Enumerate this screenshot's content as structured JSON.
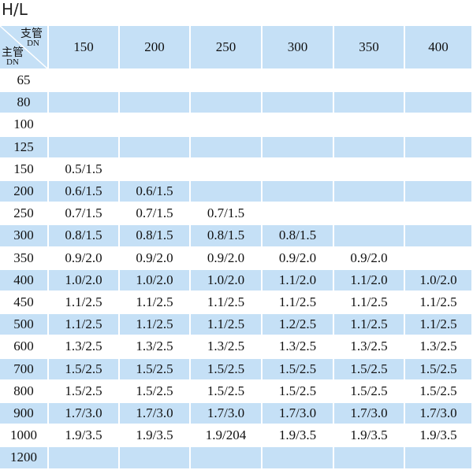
{
  "title": "H/L",
  "header": {
    "corner": {
      "branch": "支管",
      "branch_dn": "DN",
      "main": "主管",
      "main_dn": "DN"
    },
    "columns": [
      "150",
      "200",
      "250",
      "300",
      "350",
      "400"
    ]
  },
  "rows": [
    [
      "65"
    ],
    [
      "80"
    ],
    [
      "100"
    ],
    [
      "125"
    ],
    [
      "150",
      "0.5/1.5"
    ],
    [
      "200",
      "0.6/1.5",
      "0.6/1.5"
    ],
    [
      "250",
      "0.7/1.5",
      "0.7/1.5",
      "0.7/1.5"
    ],
    [
      "300",
      "0.8/1.5",
      "0.8/1.5",
      "0.8/1.5",
      "0.8/1.5"
    ],
    [
      "350",
      "0.9/2.0",
      "0.9/2.0",
      "0.9/2.0",
      "0.9/2.0",
      "0.9/2.0"
    ],
    [
      "400",
      "1.0/2.0",
      "1.0/2.0",
      "1.0/2.0",
      "1.1/2.0",
      "1.1/2.0",
      "1.0/2.0"
    ],
    [
      "450",
      "1.1/2.5",
      "1.1/2.5",
      "1.1/2.5",
      "1.1/2.5",
      "1.1/2.5",
      "1.1/2.5"
    ],
    [
      "500",
      "1.1/2.5",
      "1.1/2.5",
      "1.1/2.5",
      "1.2/2.5",
      "1.1/2.5",
      "1.1/2.5"
    ],
    [
      "600",
      "1.3/2.5",
      "1.3/2.5",
      "1.3/2.5",
      "1.3/2.5",
      "1.3/2.5",
      "1.3/2.5"
    ],
    [
      "700",
      "1.5/2.5",
      "1.5/2.5",
      "1.5/2.5",
      "1.5/2.5",
      "1.5/2.5",
      "1.5/2.5"
    ],
    [
      "800",
      "1.5/2.5",
      "1.5/2.5",
      "1.5/2.5",
      "1.5/2.5",
      "1.5/2.5",
      "1.5/2.5"
    ],
    [
      "900",
      "1.7/3.0",
      "1.7/3.0",
      "1.7/3.0",
      "1.7/3.0",
      "1.7/3.0",
      "1.7/3.0"
    ],
    [
      "1000",
      "1.9/3.5",
      "1.9/3.5",
      "1.9/204",
      "1.9/3.5",
      "1.9/3.5",
      "1.9/3.5"
    ],
    [
      "1200"
    ]
  ]
}
